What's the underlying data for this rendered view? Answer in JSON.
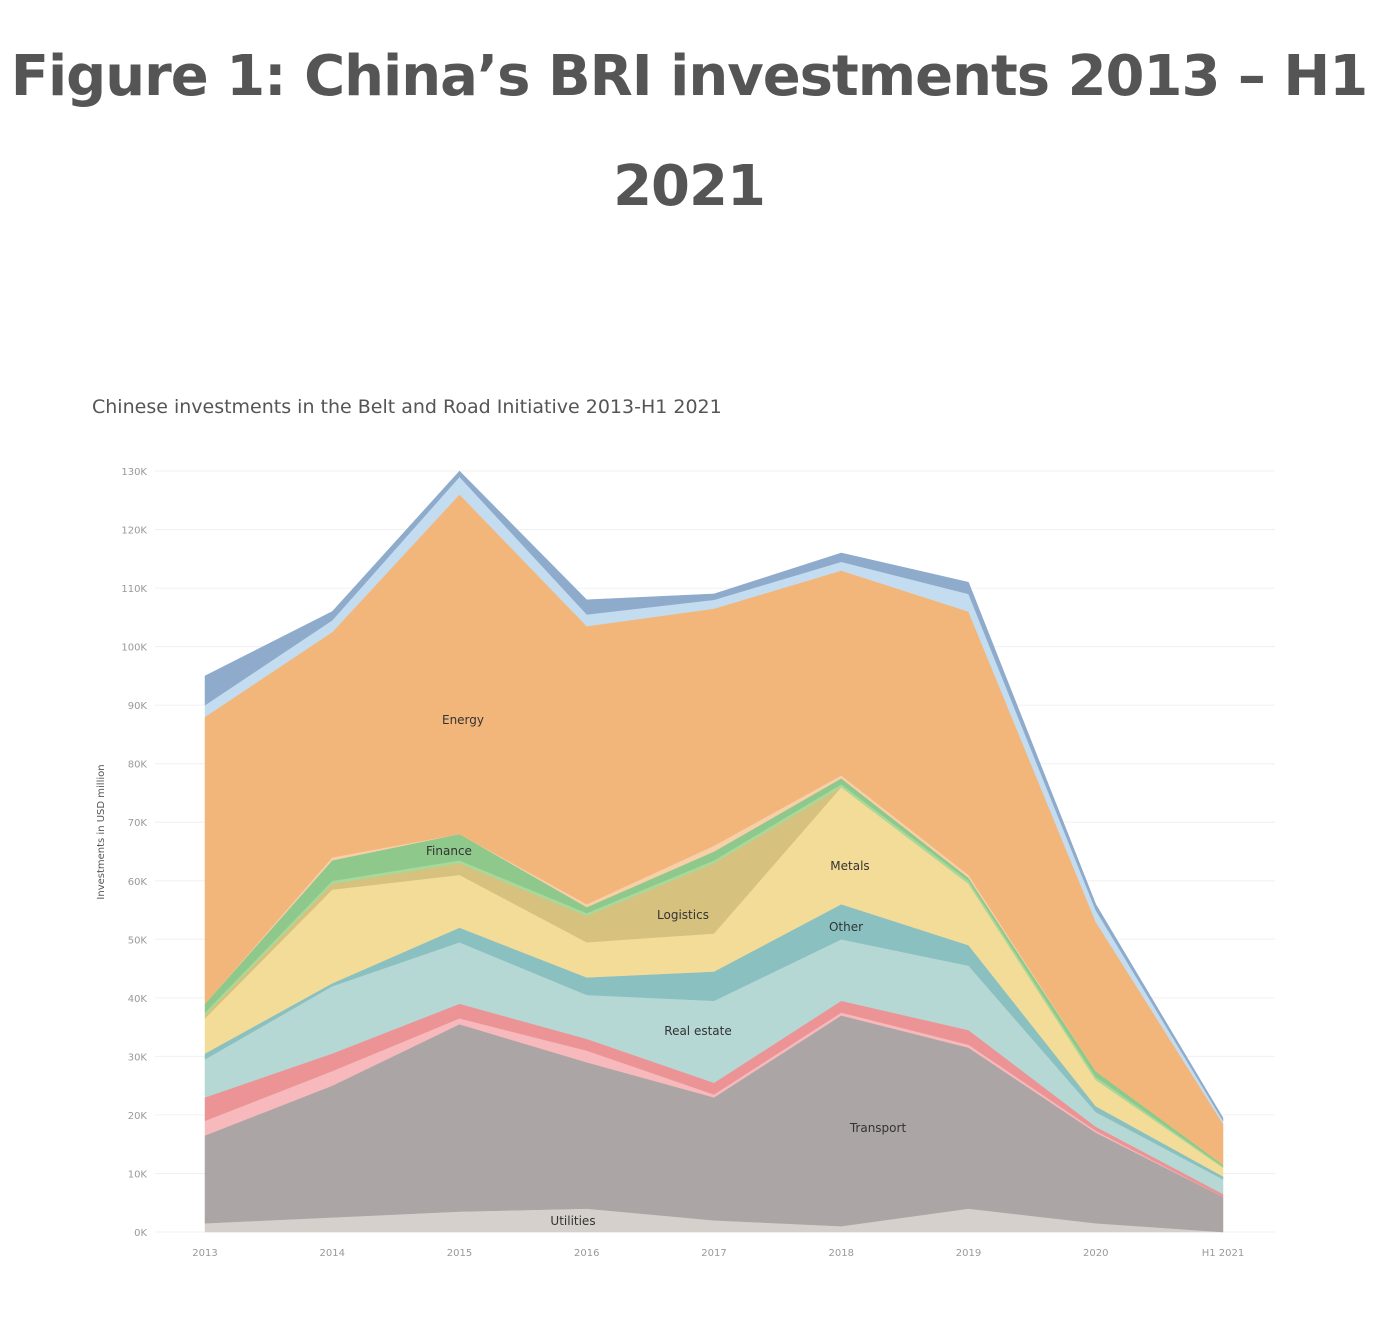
{
  "page": {
    "title_line1": "Figure 1: China’s BRI investments 2013 – H1",
    "title_line2": "2021"
  },
  "chart_data": {
    "type": "area",
    "stacked": true,
    "title": "Chinese investments in the Belt and Road Initiative 2013-H1 2021",
    "xlabel": "",
    "ylabel": "Investments in USD million",
    "ylim": [
      0,
      130000
    ],
    "y_ticks": [
      0,
      10000,
      20000,
      30000,
      40000,
      50000,
      60000,
      70000,
      80000,
      90000,
      100000,
      110000,
      120000,
      130000
    ],
    "y_tick_labels": [
      "0K",
      "10K",
      "20K",
      "30K",
      "40K",
      "50K",
      "60K",
      "70K",
      "80K",
      "90K",
      "100K",
      "110K",
      "120K",
      "130K"
    ],
    "categories": [
      "2013",
      "2014",
      "2015",
      "2016",
      "2017",
      "2018",
      "2019",
      "2020",
      "H1 2021"
    ],
    "grid": true,
    "legend": "inline labels",
    "series": [
      {
        "name": "Utilities",
        "color": "#d6d0cc",
        "values": [
          1500,
          2500,
          3500,
          4000,
          2000,
          1000,
          4000,
          1500,
          0
        ]
      },
      {
        "name": "Transport",
        "color": "#aba5a5",
        "values": [
          15000,
          22500,
          32000,
          25000,
          21000,
          36000,
          27500,
          15500,
          6000
        ]
      },
      {
        "name": "",
        "color": "#f7b9bb",
        "values": [
          2500,
          2500,
          1000,
          2000,
          500,
          500,
          500,
          300,
          0
        ]
      },
      {
        "name": "",
        "color": "#ec9395",
        "values": [
          4000,
          3000,
          2500,
          2000,
          2000,
          2000,
          2500,
          700,
          500
        ]
      },
      {
        "name": "Real estate",
        "color": "#b5d8d5",
        "values": [
          6500,
          11500,
          10500,
          7500,
          14000,
          10500,
          11000,
          2500,
          2500
        ]
      },
      {
        "name": "Other",
        "color": "#8bc0c0",
        "values": [
          1000,
          500,
          2500,
          3000,
          5000,
          6000,
          3500,
          1000,
          500
        ]
      },
      {
        "name": "Metals",
        "color": "#f3dc98",
        "values": [
          6000,
          16000,
          9000,
          6000,
          6500,
          20000,
          10500,
          4500,
          1500
        ]
      },
      {
        "name": "Logistics",
        "color": "#d6c27e",
        "values": [
          500,
          1000,
          2000,
          4500,
          12000,
          0,
          0,
          0,
          0
        ]
      },
      {
        "name": "",
        "color": "#a6d99a",
        "values": [
          500,
          500,
          500,
          500,
          500,
          500,
          500,
          500,
          200
        ]
      },
      {
        "name": "Finance",
        "color": "#8fc88b",
        "values": [
          1500,
          3500,
          4500,
          1000,
          1500,
          1000,
          500,
          1000,
          300
        ]
      },
      {
        "name": "",
        "color": "#f7cfa8",
        "values": [
          0,
          500,
          0,
          500,
          1000,
          500,
          500,
          0,
          0
        ]
      },
      {
        "name": "Energy",
        "color": "#f3b67a",
        "values": [
          49000,
          38500,
          58000,
          47500,
          40500,
          35000,
          45000,
          25500,
          7000
        ]
      },
      {
        "name": "",
        "color": "#c4dcef",
        "values": [
          2000,
          2000,
          3000,
          2000,
          1500,
          1500,
          3000,
          2000,
          500
        ]
      },
      {
        "name": "",
        "color": "#8eabcc",
        "values": [
          5000,
          1500,
          1000,
          2500,
          1000,
          1500,
          2000,
          1000,
          500
        ]
      }
    ]
  }
}
